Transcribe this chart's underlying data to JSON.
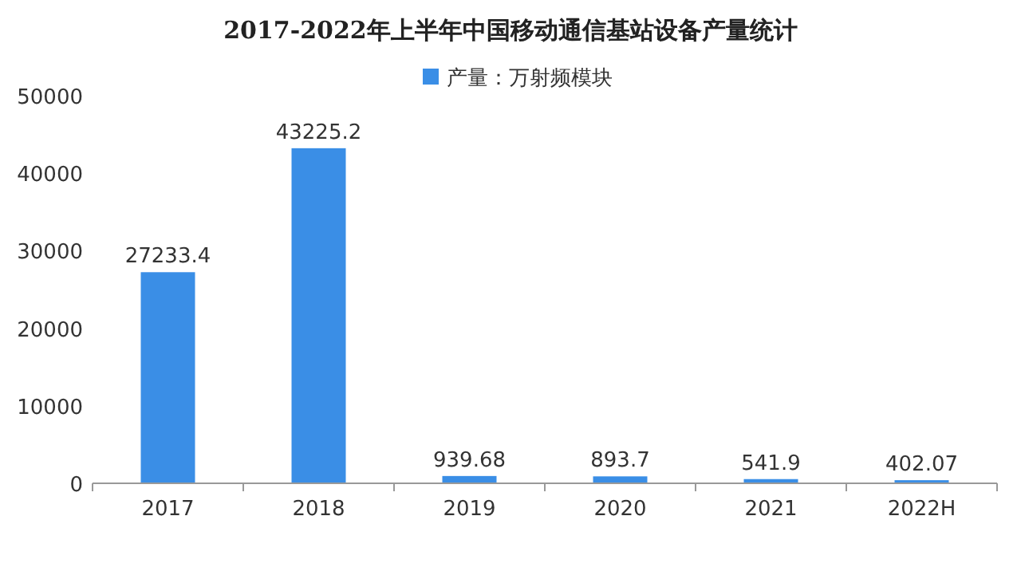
{
  "chart_data": {
    "type": "bar",
    "title": "2017-2022年上半年中国移动通信基站设备产量统计",
    "categories": [
      "2017",
      "2018",
      "2019",
      "2020",
      "2021",
      "2022H"
    ],
    "series": [
      {
        "name": "产量：万射频模块",
        "color": "#3a8ee6",
        "values": [
          27233.4,
          43225.2,
          939.68,
          893.7,
          541.9,
          402.07
        ]
      }
    ],
    "ylim": [
      0,
      50000
    ],
    "yticks": [
      0,
      10000,
      20000,
      30000,
      40000,
      50000
    ],
    "data_labels": true,
    "legend": "top"
  }
}
